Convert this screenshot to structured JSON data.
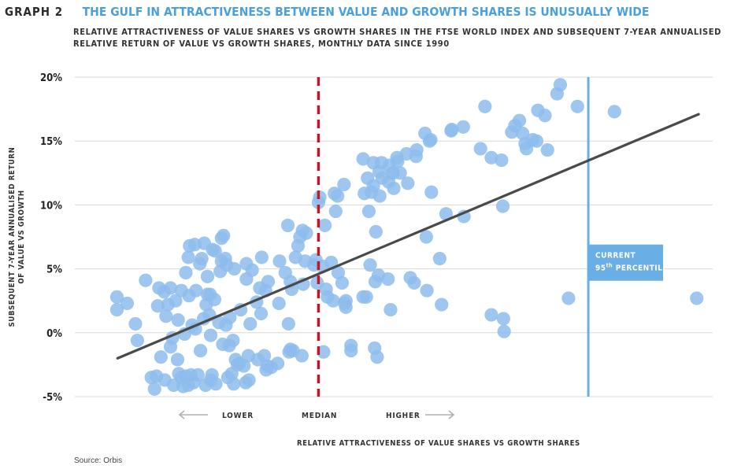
{
  "header": {
    "graph_number": "GRAPH 2",
    "title": "THE GULF IN ATTRACTIVENESS BETWEEN VALUE AND GROWTH SHARES IS UNUSUALLY WIDE",
    "subtitle": "RELATIVE ATTRACTIVENESS OF VALUE SHARES VS GROWTH SHARES IN THE FTSE WORLD INDEX AND SUBSEQUENT 7-YEAR ANNUALISED RELATIVE RETURN OF VALUE VS GROWTH SHARES, MONTHLY DATA SINCE 1990"
  },
  "source": "Source: Orbis",
  "colors": {
    "title": "#4a9fe0",
    "points": "#8dbcec",
    "trend": "#4a4a4a",
    "median": "#c0182b",
    "current": "#6aaee6"
  },
  "chart_data": {
    "type": "scatter",
    "xlabel": "RELATIVE ATTRACTIVENESS OF VALUE SHARES VS GROWTH SHARES",
    "ylabel": "SUBSEQUENT 7-YEAR ANNUALISED RETURN OF VALUE VS GROWTH",
    "y_ticks": [
      "20%",
      "15%",
      "10%",
      "5%",
      "0%",
      "-5%"
    ],
    "y_tick_values": [
      20,
      15,
      10,
      5,
      0,
      -5
    ],
    "ylim": [
      -5,
      20
    ],
    "xlim": [
      0,
      100
    ],
    "grid": "horizontal",
    "annotations": {
      "lower": "LOWER",
      "median": "MEDIAN",
      "higher": "HIGHER",
      "current_line1": "CURRENT",
      "current_line2_num": "95",
      "current_line2_sup": "th",
      "current_line2_rest": " PERCENTILE"
    },
    "median_x": 38.2,
    "current_x": 80.5,
    "trend": {
      "x": [
        6.7,
        97.8
      ],
      "y": [
        -2.0,
        17.1
      ]
    },
    "points": [
      {
        "x": 6.6,
        "y": 2.8
      },
      {
        "x": 6.6,
        "y": 1.8
      },
      {
        "x": 8.2,
        "y": 2.3
      },
      {
        "x": 9.5,
        "y": 0.7
      },
      {
        "x": 9.8,
        "y": -0.6
      },
      {
        "x": 11.1,
        "y": 4.1
      },
      {
        "x": 12.0,
        "y": -3.5
      },
      {
        "x": 12.5,
        "y": -4.4
      },
      {
        "x": 12.8,
        "y": -3.4
      },
      {
        "x": 13.2,
        "y": 3.5
      },
      {
        "x": 13.0,
        "y": 2.1
      },
      {
        "x": 13.5,
        "y": -1.9
      },
      {
        "x": 14.0,
        "y": 3.2
      },
      {
        "x": 14.3,
        "y": 1.3
      },
      {
        "x": 14.1,
        "y": -3.7
      },
      {
        "x": 14.6,
        "y": 2.2
      },
      {
        "x": 15.0,
        "y": 3.5
      },
      {
        "x": 15.0,
        "y": -1.1
      },
      {
        "x": 15.3,
        "y": -0.4
      },
      {
        "x": 15.5,
        "y": -4.1
      },
      {
        "x": 15.8,
        "y": 2.5
      },
      {
        "x": 16.1,
        "y": -2.1
      },
      {
        "x": 16.2,
        "y": 1.0
      },
      {
        "x": 16.3,
        "y": -3.2
      },
      {
        "x": 16.7,
        "y": -3.5
      },
      {
        "x": 16.7,
        "y": 3.3
      },
      {
        "x": 17.0,
        "y": -4.2
      },
      {
        "x": 17.2,
        "y": -0.1
      },
      {
        "x": 17.4,
        "y": 4.7
      },
      {
        "x": 17.4,
        "y": -3.4
      },
      {
        "x": 17.8,
        "y": -4.1
      },
      {
        "x": 17.8,
        "y": 5.9
      },
      {
        "x": 17.9,
        "y": 2.9
      },
      {
        "x": 18.0,
        "y": 6.8
      },
      {
        "x": 18.2,
        "y": -3.3
      },
      {
        "x": 18.4,
        "y": 0.6
      },
      {
        "x": 18.6,
        "y": -3.9
      },
      {
        "x": 18.8,
        "y": 6.9
      },
      {
        "x": 18.9,
        "y": 0.3
      },
      {
        "x": 19.0,
        "y": 3.3
      },
      {
        "x": 19.3,
        "y": -3.3
      },
      {
        "x": 19.6,
        "y": 5.4
      },
      {
        "x": 19.7,
        "y": -1.4
      },
      {
        "x": 19.9,
        "y": 5.8
      },
      {
        "x": 20.2,
        "y": 1.1
      },
      {
        "x": 20.3,
        "y": 7.0
      },
      {
        "x": 20.5,
        "y": -4.1
      },
      {
        "x": 20.6,
        "y": 2.2
      },
      {
        "x": 20.8,
        "y": 4.4
      },
      {
        "x": 20.8,
        "y": 3.0
      },
      {
        "x": 21.1,
        "y": 1.4
      },
      {
        "x": 21.2,
        "y": 3.0
      },
      {
        "x": 21.3,
        "y": -3.7
      },
      {
        "x": 21.3,
        "y": -0.2
      },
      {
        "x": 21.5,
        "y": -3.3
      },
      {
        "x": 21.6,
        "y": 6.5
      },
      {
        "x": 21.9,
        "y": 2.6
      },
      {
        "x": 22.0,
        "y": 6.4
      },
      {
        "x": 22.1,
        "y": -4.0
      },
      {
        "x": 22.6,
        "y": 0.8
      },
      {
        "x": 22.8,
        "y": 4.8
      },
      {
        "x": 23.0,
        "y": 5.6
      },
      {
        "x": 23.0,
        "y": 7.4
      },
      {
        "x": 23.2,
        "y": -0.9
      },
      {
        "x": 23.3,
        "y": 7.6
      },
      {
        "x": 23.6,
        "y": 5.8
      },
      {
        "x": 23.7,
        "y": 0.6
      },
      {
        "x": 23.8,
        "y": 5.3
      },
      {
        "x": 24.0,
        "y": -3.5
      },
      {
        "x": 24.2,
        "y": -1.0
      },
      {
        "x": 24.3,
        "y": 1.2
      },
      {
        "x": 24.6,
        "y": -3.2
      },
      {
        "x": 24.8,
        "y": -0.6
      },
      {
        "x": 24.9,
        "y": -4.0
      },
      {
        "x": 25.0,
        "y": 5.0
      },
      {
        "x": 25.2,
        "y": -2.1
      },
      {
        "x": 25.5,
        "y": -2.5
      },
      {
        "x": 25.8,
        "y": -2.4
      },
      {
        "x": 26.0,
        "y": 1.8
      },
      {
        "x": 26.5,
        "y": -2.6
      },
      {
        "x": 26.8,
        "y": -3.9
      },
      {
        "x": 26.9,
        "y": 4.2
      },
      {
        "x": 26.9,
        "y": 5.4
      },
      {
        "x": 27.2,
        "y": -1.8
      },
      {
        "x": 27.3,
        "y": -3.7
      },
      {
        "x": 27.5,
        "y": 0.7
      },
      {
        "x": 27.8,
        "y": 4.9
      },
      {
        "x": 28.5,
        "y": 2.4
      },
      {
        "x": 28.7,
        "y": -2.1
      },
      {
        "x": 29.0,
        "y": 3.5
      },
      {
        "x": 29.2,
        "y": 1.5
      },
      {
        "x": 29.3,
        "y": 5.9
      },
      {
        "x": 29.7,
        "y": -1.8
      },
      {
        "x": 29.9,
        "y": 3.3
      },
      {
        "x": 30.0,
        "y": -2.9
      },
      {
        "x": 30.2,
        "y": -2.6
      },
      {
        "x": 30.3,
        "y": 4.0
      },
      {
        "x": 30.8,
        "y": -2.7
      },
      {
        "x": 31.8,
        "y": -2.4
      },
      {
        "x": 32.0,
        "y": 2.3
      },
      {
        "x": 32.1,
        "y": 5.6
      },
      {
        "x": 33.0,
        "y": 4.7
      },
      {
        "x": 33.4,
        "y": 8.4
      },
      {
        "x": 33.5,
        "y": 0.7
      },
      {
        "x": 33.6,
        "y": -1.5
      },
      {
        "x": 33.8,
        "y": -1.3
      },
      {
        "x": 33.8,
        "y": 4.0
      },
      {
        "x": 34.0,
        "y": 3.4
      },
      {
        "x": 34.2,
        "y": -1.4
      },
      {
        "x": 34.6,
        "y": 5.9
      },
      {
        "x": 35.0,
        "y": 6.8
      },
      {
        "x": 35.3,
        "y": 7.5
      },
      {
        "x": 35.6,
        "y": -1.8
      },
      {
        "x": 35.7,
        "y": 8.0
      },
      {
        "x": 35.8,
        "y": 3.8
      },
      {
        "x": 36.1,
        "y": 5.6
      },
      {
        "x": 36.3,
        "y": 7.8
      },
      {
        "x": 37.5,
        "y": 5.3
      },
      {
        "x": 37.8,
        "y": 5.7
      },
      {
        "x": 38.0,
        "y": 3.9
      },
      {
        "x": 38.2,
        "y": 10.2
      },
      {
        "x": 38.4,
        "y": 10.6
      },
      {
        "x": 38.8,
        "y": 5.2
      },
      {
        "x": 39.0,
        "y": -1.5
      },
      {
        "x": 39.2,
        "y": 8.4
      },
      {
        "x": 39.4,
        "y": 3.4
      },
      {
        "x": 39.6,
        "y": 2.8
      },
      {
        "x": 40.2,
        "y": 5.5
      },
      {
        "x": 40.5,
        "y": 2.5
      },
      {
        "x": 40.7,
        "y": 10.9
      },
      {
        "x": 40.9,
        "y": 9.5
      },
      {
        "x": 41.2,
        "y": 10.7
      },
      {
        "x": 41.3,
        "y": 4.7
      },
      {
        "x": 41.9,
        "y": 3.9
      },
      {
        "x": 42.2,
        "y": 11.6
      },
      {
        "x": 42.3,
        "y": 2.3
      },
      {
        "x": 42.5,
        "y": 2.0
      },
      {
        "x": 42.5,
        "y": 2.5
      },
      {
        "x": 43.3,
        "y": -1.0
      },
      {
        "x": 43.3,
        "y": -1.4
      },
      {
        "x": 45.2,
        "y": 13.6
      },
      {
        "x": 45.2,
        "y": 2.8
      },
      {
        "x": 45.4,
        "y": 10.9
      },
      {
        "x": 45.7,
        "y": 2.8
      },
      {
        "x": 45.9,
        "y": 12.1
      },
      {
        "x": 46.1,
        "y": 9.5
      },
      {
        "x": 46.3,
        "y": 5.3
      },
      {
        "x": 46.5,
        "y": 11.0
      },
      {
        "x": 46.8,
        "y": 13.3
      },
      {
        "x": 46.8,
        "y": 11.5
      },
      {
        "x": 47.0,
        "y": -1.2
      },
      {
        "x": 47.1,
        "y": 4.0
      },
      {
        "x": 47.2,
        "y": 7.9
      },
      {
        "x": 47.4,
        "y": -1.9
      },
      {
        "x": 47.6,
        "y": 4.5
      },
      {
        "x": 47.7,
        "y": 12.6
      },
      {
        "x": 47.8,
        "y": 10.7
      },
      {
        "x": 48.1,
        "y": 13.3
      },
      {
        "x": 48.2,
        "y": 12.1
      },
      {
        "x": 49.1,
        "y": 4.2
      },
      {
        "x": 49.2,
        "y": 11.8
      },
      {
        "x": 49.3,
        "y": 13.1
      },
      {
        "x": 49.5,
        "y": 1.8
      },
      {
        "x": 49.8,
        "y": 12.5
      },
      {
        "x": 49.9,
        "y": 12.5
      },
      {
        "x": 50.0,
        "y": 11.3
      },
      {
        "x": 50.5,
        "y": 13.7
      },
      {
        "x": 50.6,
        "y": 13.4
      },
      {
        "x": 51.0,
        "y": 12.5
      },
      {
        "x": 52.0,
        "y": 14.0
      },
      {
        "x": 52.2,
        "y": 11.7
      },
      {
        "x": 52.6,
        "y": 4.3
      },
      {
        "x": 53.2,
        "y": 3.9
      },
      {
        "x": 53.5,
        "y": 13.8
      },
      {
        "x": 53.6,
        "y": 14.3
      },
      {
        "x": 54.9,
        "y": 15.6
      },
      {
        "x": 55.1,
        "y": 7.5
      },
      {
        "x": 55.2,
        "y": 3.3
      },
      {
        "x": 55.6,
        "y": 15.0
      },
      {
        "x": 55.8,
        "y": 15.1
      },
      {
        "x": 55.9,
        "y": 11.0
      },
      {
        "x": 57.2,
        "y": 5.8
      },
      {
        "x": 57.5,
        "y": 2.2
      },
      {
        "x": 58.2,
        "y": 9.3
      },
      {
        "x": 59.0,
        "y": 15.8
      },
      {
        "x": 59.1,
        "y": 15.9
      },
      {
        "x": 60.9,
        "y": 16.1
      },
      {
        "x": 61.0,
        "y": 9.1
      },
      {
        "x": 63.6,
        "y": 14.4
      },
      {
        "x": 64.3,
        "y": 17.7
      },
      {
        "x": 65.3,
        "y": 13.7
      },
      {
        "x": 65.3,
        "y": 1.4
      },
      {
        "x": 66.9,
        "y": 13.5
      },
      {
        "x": 67.1,
        "y": 9.9
      },
      {
        "x": 67.2,
        "y": 1.1
      },
      {
        "x": 67.3,
        "y": 0.1
      },
      {
        "x": 68.5,
        "y": 15.7
      },
      {
        "x": 69.0,
        "y": 16.2
      },
      {
        "x": 69.7,
        "y": 16.6
      },
      {
        "x": 70.2,
        "y": 15.6
      },
      {
        "x": 70.6,
        "y": 14.8
      },
      {
        "x": 70.8,
        "y": 14.4
      },
      {
        "x": 71.8,
        "y": 15.1
      },
      {
        "x": 72.4,
        "y": 15.0
      },
      {
        "x": 72.6,
        "y": 17.4
      },
      {
        "x": 73.7,
        "y": 17.0
      },
      {
        "x": 74.1,
        "y": 14.3
      },
      {
        "x": 75.6,
        "y": 18.7
      },
      {
        "x": 76.1,
        "y": 19.4
      },
      {
        "x": 77.4,
        "y": 2.7
      },
      {
        "x": 78.8,
        "y": 17.7
      },
      {
        "x": 84.6,
        "y": 17.3
      },
      {
        "x": 97.5,
        "y": 2.7
      }
    ]
  }
}
